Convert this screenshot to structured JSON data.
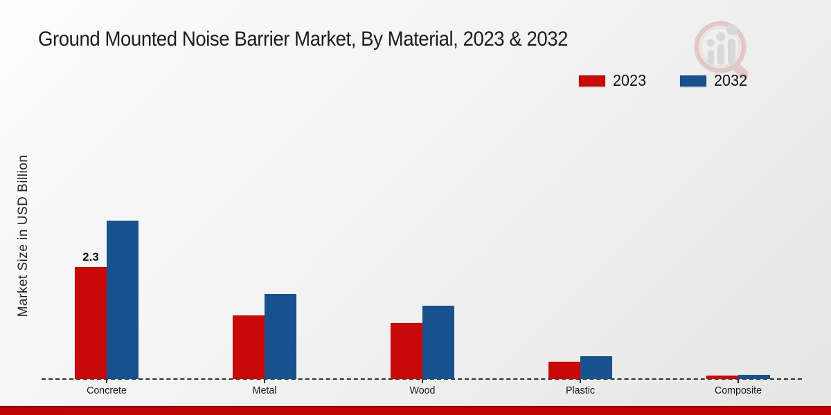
{
  "title": "Ground Mounted Noise Barrier Market, By Material, 2023 & 2032",
  "ylabel": "Market Size in USD Billion",
  "colors": {
    "series_2023": "#c90808",
    "series_2032": "#17528f",
    "footer_strip": "#c40404",
    "baseline": "#2e2e2e"
  },
  "legend": {
    "position": "top-right",
    "items": [
      {
        "label": "2023",
        "color": "#c90808"
      },
      {
        "label": "2032",
        "color": "#17528f"
      }
    ]
  },
  "watermark_icon": "magnifier-bar-chart-logo",
  "chart_data": {
    "type": "bar",
    "title": "Ground Mounted Noise Barrier Market, By Material, 2023 & 2032",
    "xlabel": "",
    "ylabel": "Market Size in USD Billion",
    "categories": [
      "Concrete",
      "Metal",
      "Wood",
      "Plastic",
      "Composite"
    ],
    "series": [
      {
        "name": "2023",
        "color": "#c90808",
        "values": [
          2.3,
          1.3,
          1.15,
          0.35,
          0.07
        ],
        "data_labels": [
          "2.3",
          "",
          "",
          "",
          ""
        ]
      },
      {
        "name": "2032",
        "color": "#17528f",
        "values": [
          3.25,
          1.75,
          1.5,
          0.47,
          0.09
        ],
        "data_labels": [
          "",
          "",
          "",
          "",
          ""
        ]
      }
    ],
    "ylim": [
      0,
      4
    ],
    "grid": false,
    "axis_style": "dashed-baseline-only",
    "legend_position": "top-right"
  }
}
